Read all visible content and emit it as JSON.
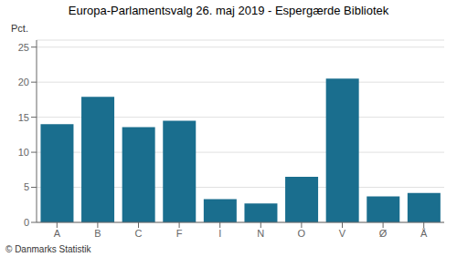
{
  "chart_data": {
    "type": "bar",
    "title": "Europa-Parlamentsvalg 26. maj 2019 - Espergærde Bibliotek",
    "categories": [
      "A",
      "B",
      "C",
      "F",
      "I",
      "N",
      "O",
      "V",
      "Ø",
      "Å"
    ],
    "values": [
      14.0,
      17.9,
      13.6,
      14.5,
      3.3,
      2.7,
      6.5,
      20.5,
      3.7,
      4.2
    ],
    "color": "#1a6e8e",
    "ylabel": "Pct.",
    "ylim": [
      0,
      26
    ],
    "yticks": [
      0,
      5,
      10,
      15,
      20,
      25
    ],
    "grid": true,
    "annotations": [
      "© Danmarks Statistik"
    ]
  }
}
